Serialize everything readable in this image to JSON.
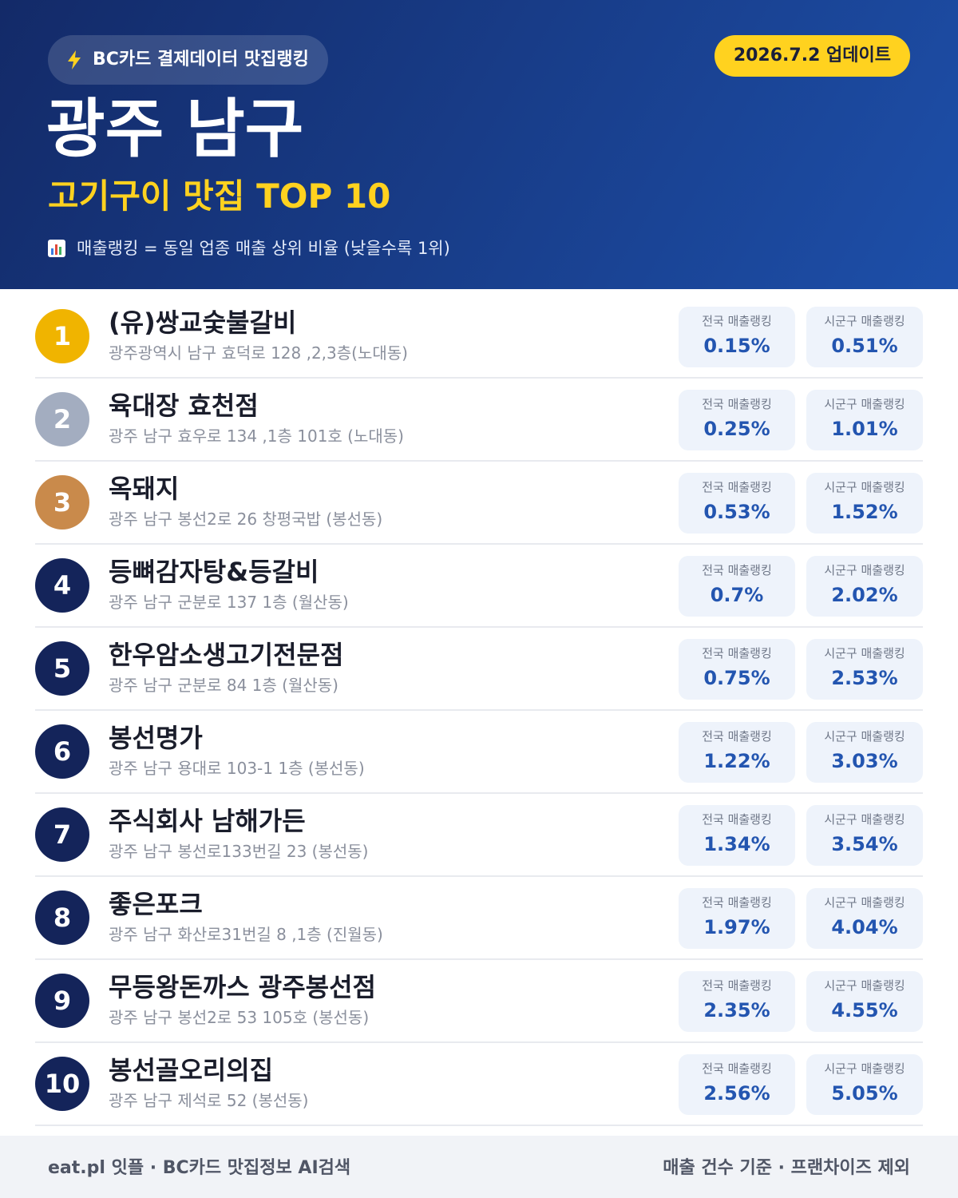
{
  "header": {
    "badge": "BC카드 결제데이터 맛집랭킹",
    "date": "2026.7.2 업데이트",
    "title": "광주 남구",
    "subtitle": "고기구이 맛집 TOP 10",
    "note": "매출랭킹 = 동일 업종 매출 상위 비율 (낮을수록 1위)"
  },
  "rows": [
    {
      "rank": 1,
      "name": "(유)쌍교숯불갈비",
      "address": "광주광역시 남구 효덕로 128 ,2,3층(노대동)",
      "national_label": "전국 매출랭킹",
      "national": "0.15%",
      "local_label": "시군구 매출랭킹",
      "local": "0.51%"
    },
    {
      "rank": 2,
      "name": "육대장 효천점",
      "address": "광주 남구 효우로 134 ,1층 101호 (노대동)",
      "national_label": "전국 매출랭킹",
      "national": "0.25%",
      "local_label": "시군구 매출랭킹",
      "local": "1.01%"
    },
    {
      "rank": 3,
      "name": "옥돼지",
      "address": "광주 남구 봉선2로 26 창평국밥 (봉선동)",
      "national_label": "전국 매출랭킹",
      "national": "0.53%",
      "local_label": "시군구 매출랭킹",
      "local": "1.52%"
    },
    {
      "rank": 4,
      "name": "등뼈감자탕&등갈비",
      "address": "광주 남구 군분로 137 1층 (월산동)",
      "national_label": "전국 매출랭킹",
      "national": "0.7%",
      "local_label": "시군구 매출랭킹",
      "local": "2.02%"
    },
    {
      "rank": 5,
      "name": "한우암소생고기전문점",
      "address": "광주 남구 군분로 84 1층 (월산동)",
      "national_label": "전국 매출랭킹",
      "national": "0.75%",
      "local_label": "시군구 매출랭킹",
      "local": "2.53%"
    },
    {
      "rank": 6,
      "name": "봉선명가",
      "address": "광주 남구 용대로 103-1 1층 (봉선동)",
      "national_label": "전국 매출랭킹",
      "national": "1.22%",
      "local_label": "시군구 매출랭킹",
      "local": "3.03%"
    },
    {
      "rank": 7,
      "name": "주식회사 남해가든",
      "address": "광주 남구 봉선로133번길 23 (봉선동)",
      "national_label": "전국 매출랭킹",
      "national": "1.34%",
      "local_label": "시군구 매출랭킹",
      "local": "3.54%"
    },
    {
      "rank": 8,
      "name": "좋은포크",
      "address": "광주 남구 화산로31번길 8 ,1층 (진월동)",
      "national_label": "전국 매출랭킹",
      "national": "1.97%",
      "local_label": "시군구 매출랭킹",
      "local": "4.04%"
    },
    {
      "rank": 9,
      "name": "무등왕돈까스 광주봉선점",
      "address": "광주 남구 봉선2로 53 105호 (봉선동)",
      "national_label": "전국 매출랭킹",
      "national": "2.35%",
      "local_label": "시군구 매출랭킹",
      "local": "4.55%"
    },
    {
      "rank": 10,
      "name": "봉선골오리의집",
      "address": "광주 남구 제석로 52 (봉선동)",
      "national_label": "전국 매출랭킹",
      "national": "2.56%",
      "local_label": "시군구 매출랭킹",
      "local": "5.05%"
    }
  ],
  "footer": {
    "left": "eat.pl 잇플 · BC카드 맛집정보 AI검색",
    "right": "매출 건수 기준 · 프랜차이즈 제외"
  }
}
